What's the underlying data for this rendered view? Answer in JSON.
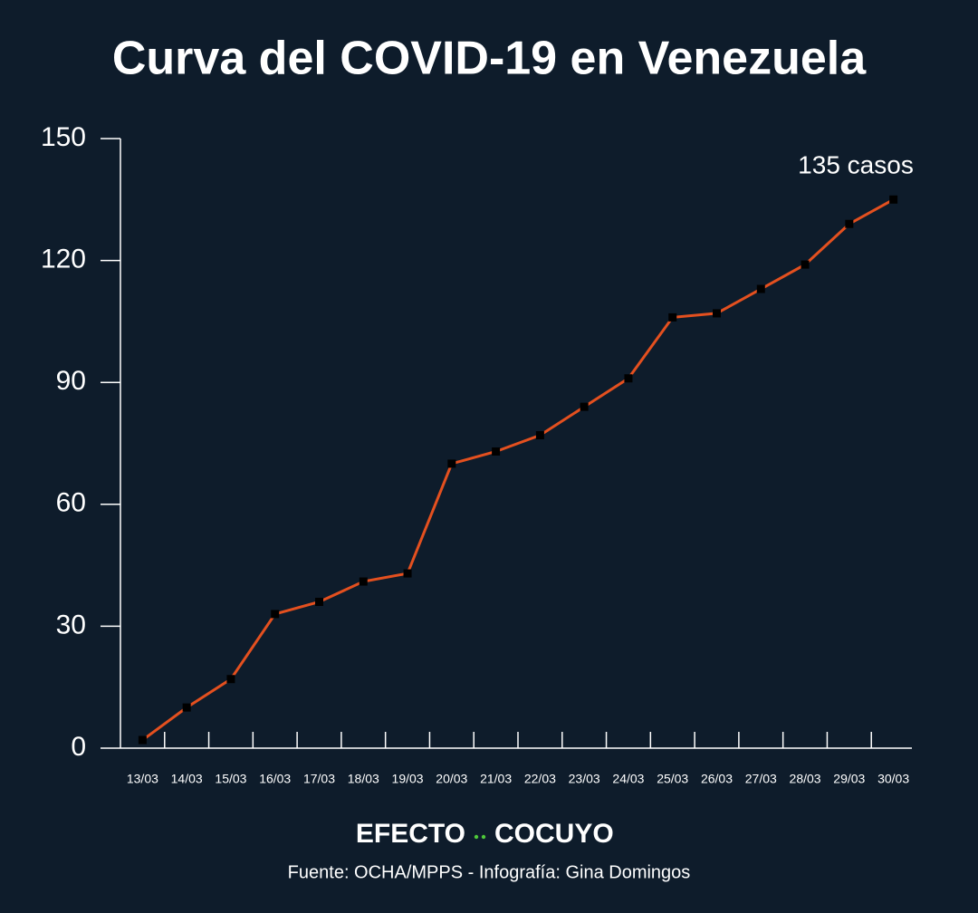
{
  "chart_data": {
    "type": "line",
    "title": "Curva del COVID-19 en Venezuela",
    "categories": [
      "13/03",
      "14/03",
      "15/03",
      "16/03",
      "17/03",
      "18/03",
      "19/03",
      "20/03",
      "21/03",
      "22/03",
      "23/03",
      "24/03",
      "25/03",
      "26/03",
      "27/03",
      "28/03",
      "29/03",
      "30/03"
    ],
    "values": [
      2,
      10,
      17,
      33,
      36,
      41,
      43,
      70,
      73,
      77,
      84,
      91,
      106,
      107,
      113,
      119,
      129,
      135
    ],
    "color": "#e4501f",
    "marker_color": "#000000",
    "ylim": [
      0,
      150
    ],
    "yticks": [
      0,
      30,
      60,
      90,
      120,
      150
    ],
    "grid": false,
    "annotation": "135 casos",
    "logo": [
      "EFECTO",
      "COCUYO"
    ],
    "source": "Fuente: OCHA/MPPS - Infografía: Gina Domingos"
  }
}
